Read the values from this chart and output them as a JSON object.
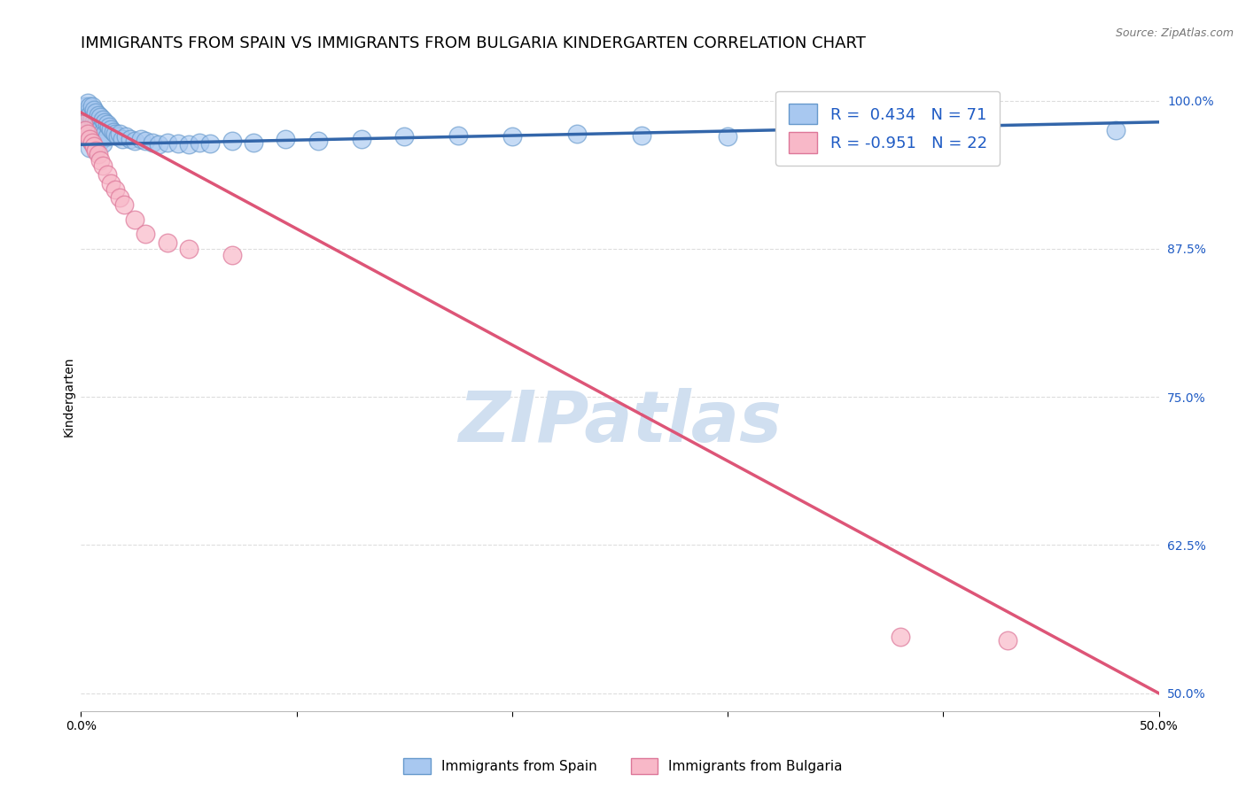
{
  "title": "IMMIGRANTS FROM SPAIN VS IMMIGRANTS FROM BULGARIA KINDERGARTEN CORRELATION CHART",
  "source": "Source: ZipAtlas.com",
  "ylabel": "Kindergarten",
  "xmin": 0.0,
  "xmax": 0.5,
  "ymin": 0.485,
  "ymax": 1.015,
  "yticks": [
    0.5,
    0.625,
    0.75,
    0.875,
    1.0
  ],
  "ytick_labels": [
    "50.0%",
    "62.5%",
    "75.0%",
    "87.5%",
    "100.0%"
  ],
  "xticks": [
    0.0,
    0.1,
    0.2,
    0.3,
    0.4,
    0.5
  ],
  "xtick_labels": [
    "0.0%",
    "",
    "",
    "",
    "",
    "50.0%"
  ],
  "spain_color": "#A8C8F0",
  "spain_edge_color": "#6699CC",
  "spain_line_color": "#3366AA",
  "bulgaria_color": "#F8B8C8",
  "bulgaria_edge_color": "#DD7799",
  "bulgaria_line_color": "#DD5577",
  "spain_R": 0.434,
  "spain_N": 71,
  "bulgaria_R": -0.951,
  "bulgaria_N": 22,
  "legend_text_color": "#1F5BC4",
  "right_axis_color": "#1F5BC4",
  "watermark": "ZIPatlas",
  "watermark_color": "#D0DFF0",
  "background_color": "#FFFFFF",
  "grid_color": "#DDDDDD",
  "title_fontsize": 13,
  "axis_label_fontsize": 10,
  "tick_fontsize": 10,
  "legend_fontsize": 13,
  "spain_scatter_x": [
    0.001,
    0.002,
    0.002,
    0.002,
    0.003,
    0.003,
    0.003,
    0.003,
    0.004,
    0.004,
    0.004,
    0.004,
    0.004,
    0.005,
    0.005,
    0.005,
    0.005,
    0.006,
    0.006,
    0.006,
    0.006,
    0.007,
    0.007,
    0.007,
    0.007,
    0.008,
    0.008,
    0.008,
    0.009,
    0.009,
    0.009,
    0.01,
    0.01,
    0.01,
    0.011,
    0.011,
    0.012,
    0.012,
    0.013,
    0.014,
    0.015,
    0.016,
    0.017,
    0.018,
    0.019,
    0.021,
    0.023,
    0.025,
    0.028,
    0.03,
    0.033,
    0.036,
    0.04,
    0.045,
    0.05,
    0.055,
    0.06,
    0.07,
    0.08,
    0.095,
    0.11,
    0.13,
    0.15,
    0.175,
    0.2,
    0.23,
    0.26,
    0.3,
    0.35,
    0.42,
    0.48
  ],
  "spain_scatter_y": [
    0.99,
    0.995,
    0.985,
    0.975,
    0.998,
    0.99,
    0.98,
    0.97,
    0.995,
    0.988,
    0.978,
    0.968,
    0.96,
    0.995,
    0.985,
    0.975,
    0.965,
    0.992,
    0.982,
    0.972,
    0.963,
    0.99,
    0.98,
    0.97,
    0.96,
    0.988,
    0.978,
    0.968,
    0.986,
    0.976,
    0.966,
    0.984,
    0.974,
    0.964,
    0.982,
    0.972,
    0.98,
    0.97,
    0.978,
    0.976,
    0.974,
    0.972,
    0.97,
    0.972,
    0.968,
    0.97,
    0.968,
    0.966,
    0.968,
    0.966,
    0.965,
    0.963,
    0.965,
    0.964,
    0.963,
    0.965,
    0.964,
    0.966,
    0.965,
    0.968,
    0.966,
    0.968,
    0.97,
    0.971,
    0.97,
    0.972,
    0.971,
    0.97,
    0.972,
    0.97,
    0.975
  ],
  "spain_line_x": [
    0.0,
    0.5
  ],
  "spain_line_y": [
    0.963,
    0.982
  ],
  "bulgaria_scatter_x": [
    0.001,
    0.002,
    0.003,
    0.004,
    0.005,
    0.006,
    0.007,
    0.008,
    0.009,
    0.01,
    0.012,
    0.014,
    0.016,
    0.018,
    0.02,
    0.025,
    0.03,
    0.04,
    0.05,
    0.07,
    0.38,
    0.43
  ],
  "bulgaria_scatter_y": [
    0.98,
    0.975,
    0.972,
    0.968,
    0.965,
    0.962,
    0.958,
    0.955,
    0.95,
    0.945,
    0.938,
    0.93,
    0.925,
    0.918,
    0.912,
    0.9,
    0.888,
    0.88,
    0.875,
    0.87,
    0.548,
    0.545
  ],
  "bulgaria_line_x": [
    0.0,
    0.5
  ],
  "bulgaria_line_y": [
    0.99,
    0.5
  ]
}
